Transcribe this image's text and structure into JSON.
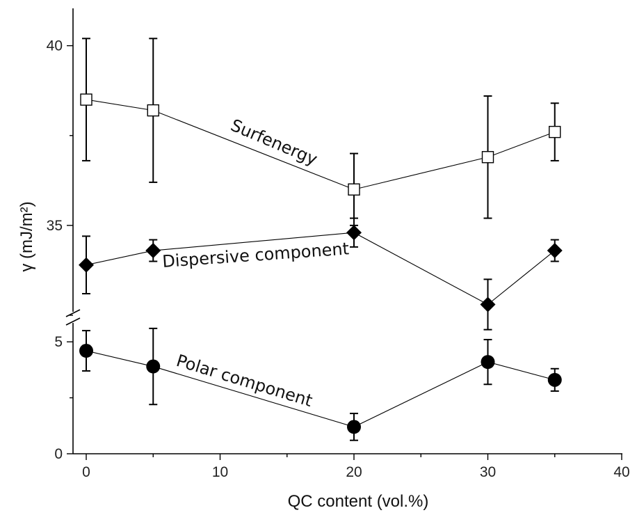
{
  "chart_data": {
    "type": "scatter",
    "xlabel": "QC content (vol.%)",
    "ylabel": "γ (mJ/m²)",
    "xlim": [
      -1,
      40
    ],
    "x_ticks": [
      "0",
      "10",
      "20",
      "30",
      "40"
    ],
    "y_axis_broken": true,
    "y_upper_ticks": [
      "35",
      "40"
    ],
    "y_lower_ticks": [
      "0",
      "5"
    ],
    "upper_ylim": [
      32.5,
      41
    ],
    "lower_ylim": [
      0,
      6
    ],
    "grid": false,
    "legend": "none",
    "series": [
      {
        "annotation": "Surfenergy",
        "marker": "open-square",
        "panel": "upper",
        "x": [
          0,
          5,
          20,
          30,
          35
        ],
        "y": [
          38.5,
          38.2,
          36.0,
          36.9,
          37.6
        ],
        "err": [
          1.7,
          2.0,
          1.0,
          1.7,
          0.8
        ]
      },
      {
        "annotation": "Dispersive component",
        "marker": "filled-diamond",
        "panel": "upper",
        "x": [
          0,
          5,
          20,
          30,
          35
        ],
        "y": [
          33.9,
          34.3,
          34.8,
          32.8,
          34.3
        ],
        "err": [
          0.8,
          0.3,
          0.4,
          0.7,
          0.3
        ]
      },
      {
        "annotation": "Polar component",
        "marker": "filled-circle",
        "panel": "lower",
        "x": [
          0,
          5,
          20,
          30,
          35
        ],
        "y": [
          4.6,
          3.9,
          1.2,
          4.1,
          3.3
        ],
        "err": [
          0.9,
          1.7,
          0.6,
          1.0,
          0.5
        ]
      }
    ]
  }
}
